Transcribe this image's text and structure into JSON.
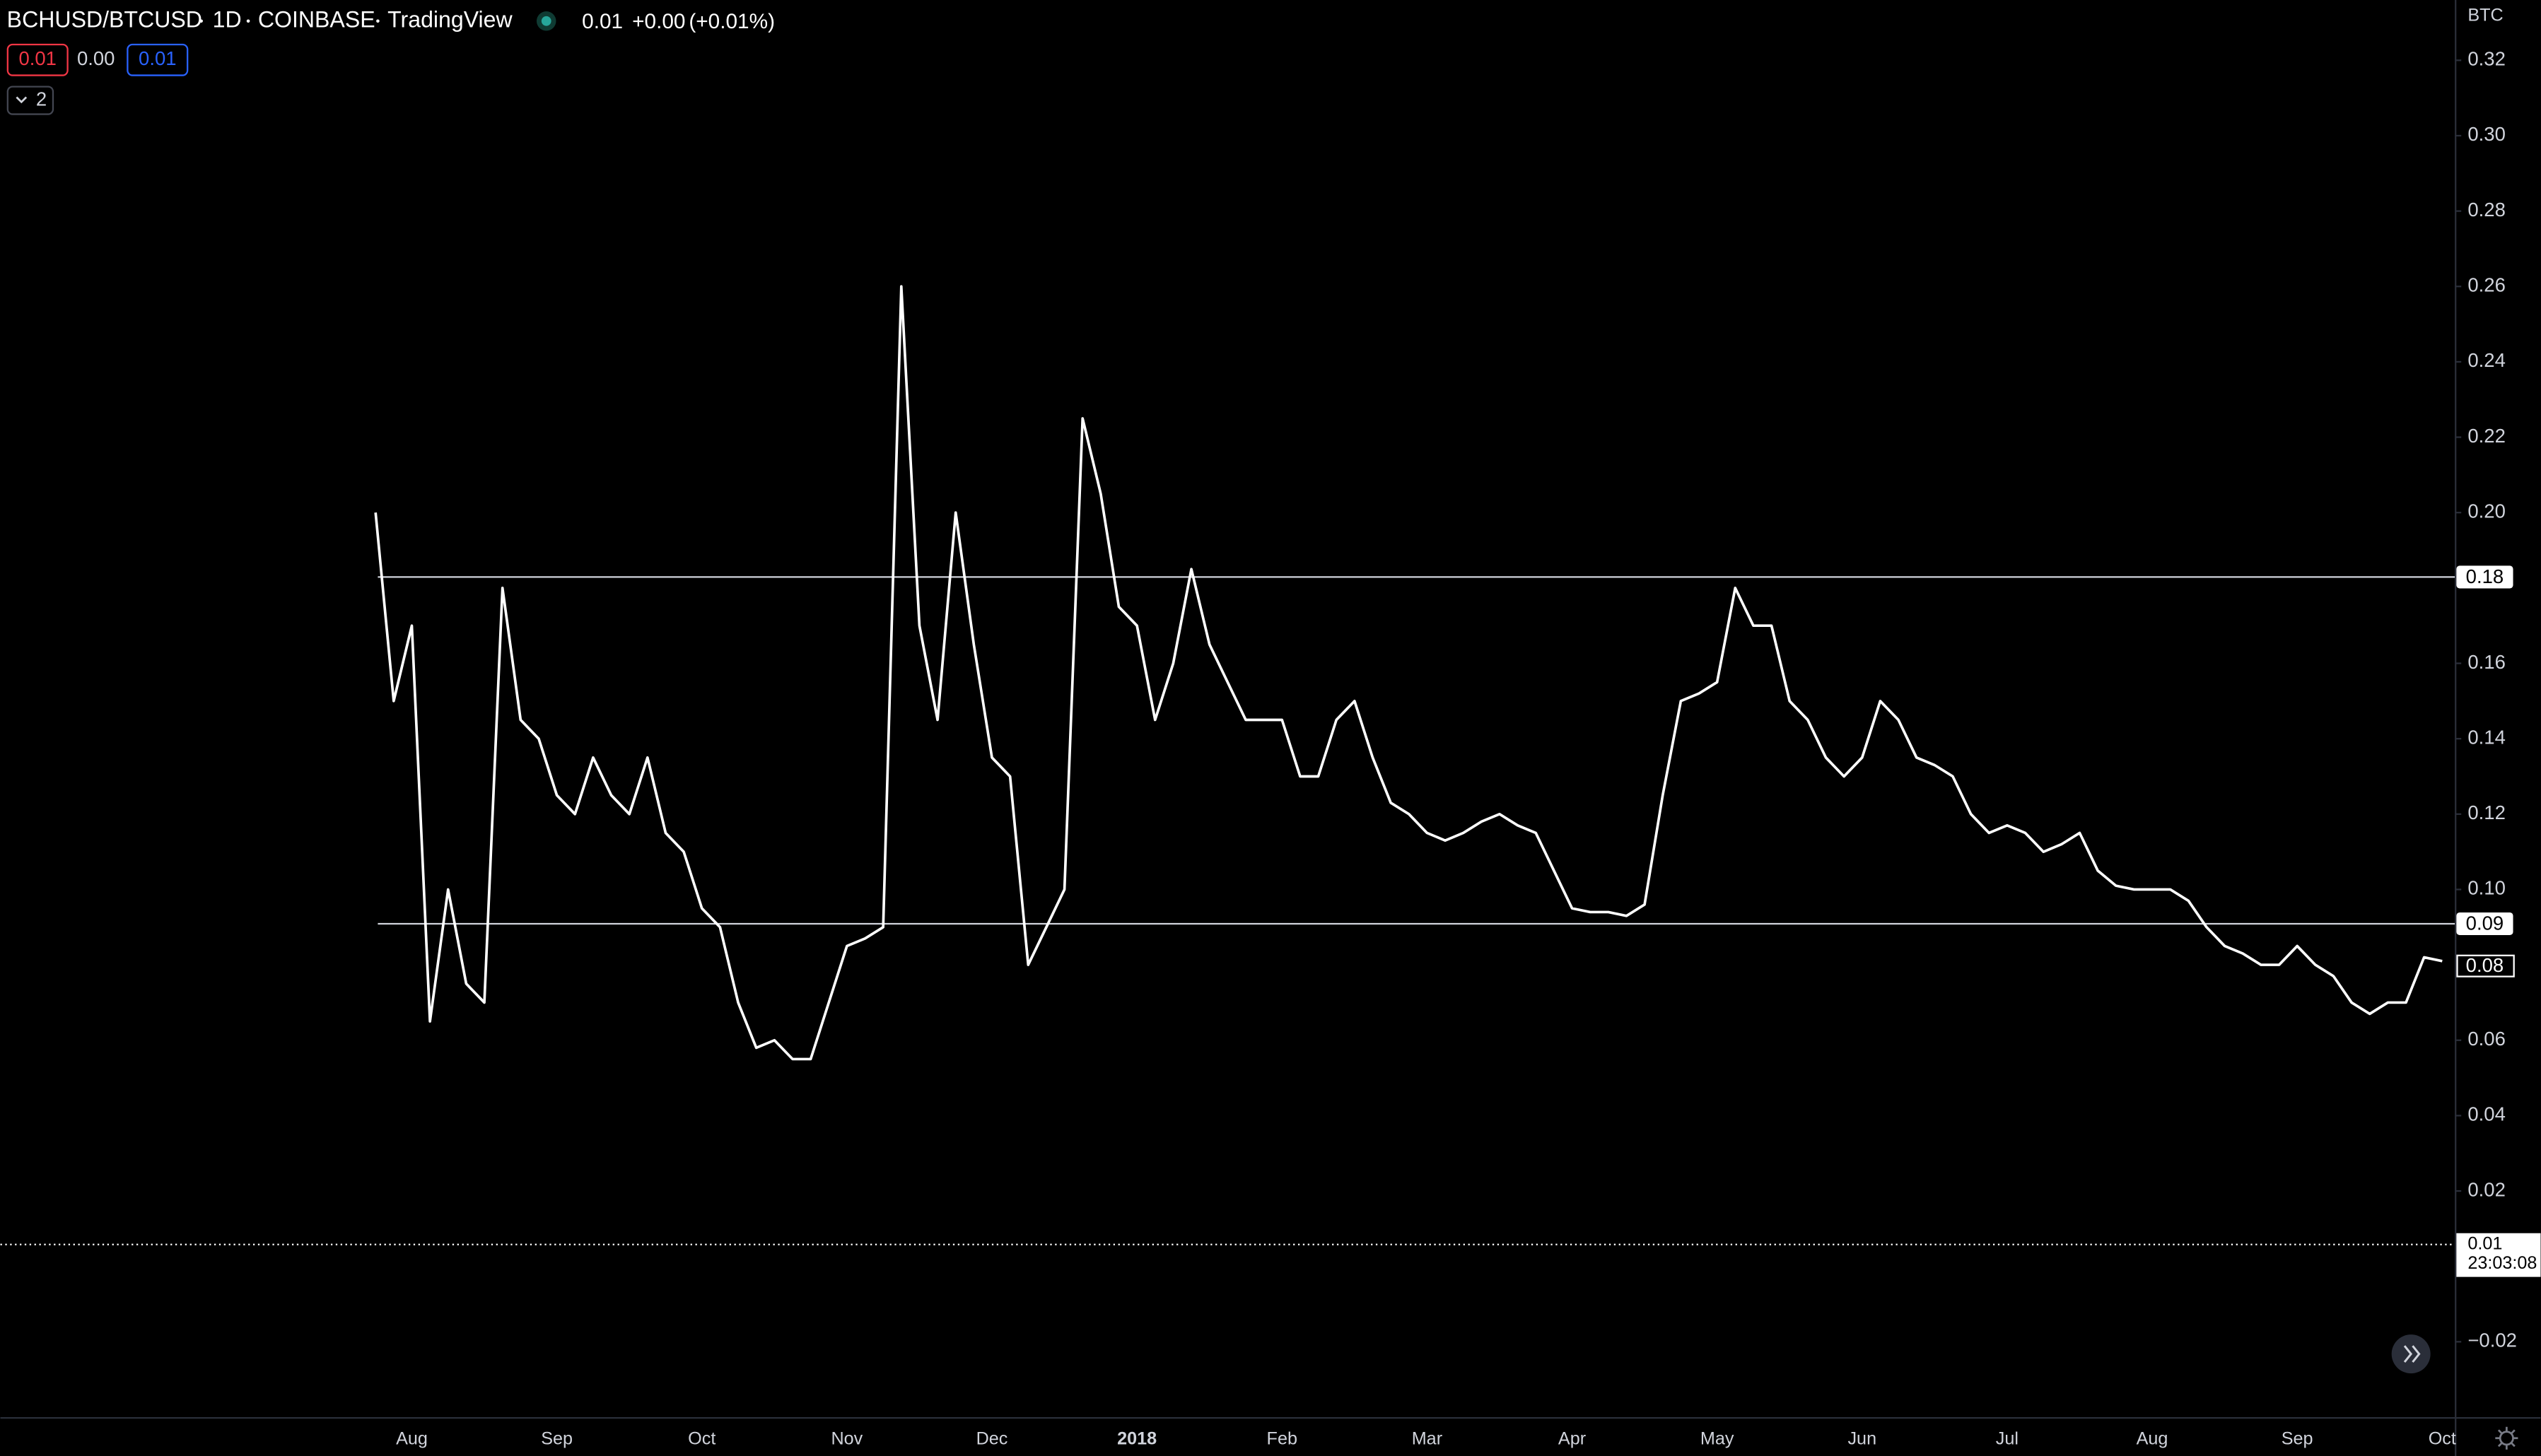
{
  "header": {
    "symbol": "BCHUSD/BTCUSD",
    "interval": "1D",
    "exchange": "COINBASE",
    "source": "TradingView",
    "last": "0.01",
    "change": "+0.00",
    "change_pct": "(+0.01%)"
  },
  "indicators": {
    "values": [
      "0.01",
      "0.00",
      "0.01"
    ],
    "count": "2"
  },
  "chart_data": {
    "type": "line",
    "color": "#ffffff",
    "axis_unit": "BTC",
    "categories": [
      null,
      null,
      "Aug",
      null,
      null,
      null,
      null,
      null,
      null,
      null,
      "Sep",
      null,
      null,
      null,
      null,
      null,
      null,
      null,
      "Oct",
      null,
      null,
      null,
      null,
      null,
      null,
      null,
      "Nov",
      null,
      null,
      null,
      null,
      null,
      null,
      null,
      "Dec",
      null,
      null,
      null,
      null,
      null,
      null,
      null,
      "2018",
      null,
      null,
      null,
      null,
      null,
      null,
      null,
      "Feb",
      null,
      null,
      null,
      null,
      null,
      null,
      null,
      "Mar",
      null,
      null,
      null,
      null,
      null,
      null,
      null,
      "Apr",
      null,
      null,
      null,
      null,
      null,
      null,
      null,
      "May",
      null,
      null,
      null,
      null,
      null,
      null,
      null,
      "Jun",
      null,
      null,
      null,
      null,
      null,
      null,
      null,
      "Jul",
      null,
      null,
      null,
      null,
      null,
      null,
      null,
      "Aug",
      null,
      null,
      null,
      null,
      null,
      null,
      null,
      "Sep",
      null,
      null,
      null,
      null,
      null,
      null,
      null,
      "Oct"
    ],
    "values": [
      0.2,
      0.15,
      0.17,
      0.065,
      0.1,
      0.075,
      0.07,
      0.18,
      0.145,
      0.14,
      0.125,
      0.12,
      0.135,
      0.125,
      0.12,
      0.135,
      0.115,
      0.11,
      0.095,
      0.09,
      0.07,
      0.058,
      0.06,
      0.055,
      0.055,
      0.07,
      0.085,
      0.087,
      0.09,
      0.26,
      0.17,
      0.145,
      0.2,
      0.165,
      0.135,
      0.13,
      0.08,
      0.09,
      0.1,
      0.225,
      0.205,
      0.175,
      0.17,
      0.145,
      0.16,
      0.185,
      0.165,
      0.155,
      0.145,
      0.145,
      0.145,
      0.13,
      0.13,
      0.145,
      0.15,
      0.135,
      0.123,
      0.12,
      0.115,
      0.113,
      0.115,
      0.118,
      0.12,
      0.117,
      0.115,
      0.105,
      0.095,
      0.094,
      0.094,
      0.093,
      0.096,
      0.125,
      0.15,
      0.152,
      0.155,
      0.18,
      0.17,
      0.17,
      0.15,
      0.145,
      0.135,
      0.13,
      0.135,
      0.15,
      0.145,
      0.135,
      0.133,
      0.13,
      0.12,
      0.115,
      0.117,
      0.115,
      0.11,
      0.112,
      0.115,
      0.105,
      0.101,
      0.1,
      0.1,
      0.1,
      0.097,
      0.09,
      0.085,
      0.083,
      0.08,
      0.08,
      0.085,
      0.08,
      0.077,
      0.07,
      0.067,
      0.07,
      0.07,
      0.082,
      0.081
    ],
    "ylim": [
      -0.04,
      0.336
    ],
    "yticks": [
      {
        "value": 0.32,
        "label": "0.32"
      },
      {
        "value": 0.3,
        "label": "0.30"
      },
      {
        "value": 0.28,
        "label": "0.28"
      },
      {
        "value": 0.26,
        "label": "0.26"
      },
      {
        "value": 0.24,
        "label": "0.24"
      },
      {
        "value": 0.22,
        "label": "0.22"
      },
      {
        "value": 0.2,
        "label": "0.20"
      },
      {
        "value": 0.16,
        "label": "0.16"
      },
      {
        "value": 0.14,
        "label": "0.14"
      },
      {
        "value": 0.12,
        "label": "0.12"
      },
      {
        "value": 0.1,
        "label": "0.10"
      },
      {
        "value": 0.06,
        "label": "0.06"
      },
      {
        "value": 0.04,
        "label": "0.04"
      },
      {
        "value": 0.02,
        "label": "0.02"
      },
      {
        "value": -0.02,
        "label": "−0.02"
      }
    ],
    "levels": [
      {
        "value": 0.1829,
        "label": "0.18"
      },
      {
        "value": 0.0909,
        "label": "0.09"
      }
    ],
    "last_price": {
      "value": 0.0797,
      "label": "0.08"
    },
    "countdown_line": {
      "value": 0.0058,
      "label": "0.01",
      "timer": "23:03:08"
    }
  }
}
